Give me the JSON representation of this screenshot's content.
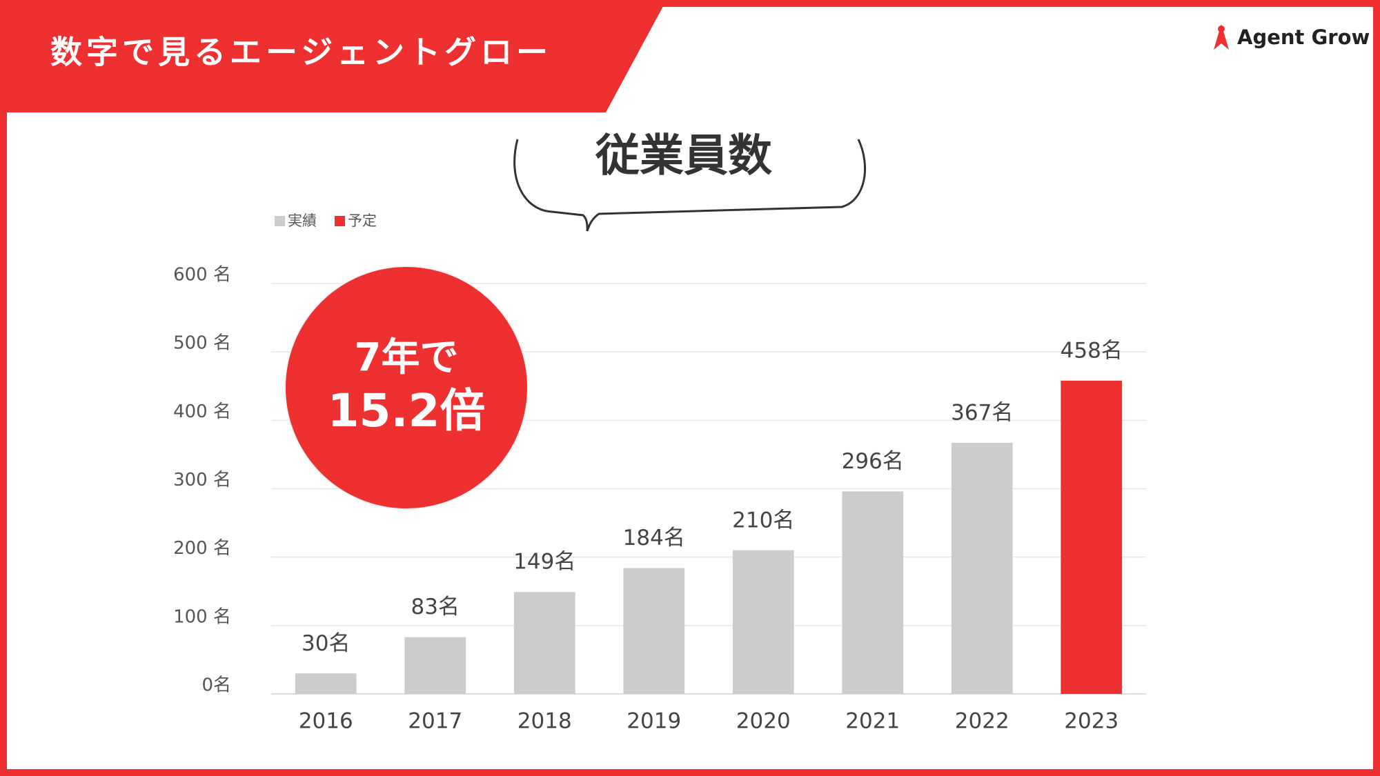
{
  "header": {
    "title": "数字で見るエージェントグロー",
    "logo": "Agent Grow"
  },
  "chart_data": {
    "type": "bar",
    "title": "従業員数",
    "annotation": [
      "7年で",
      "15.2倍"
    ],
    "categories": [
      "2016",
      "2017",
      "2018",
      "2019",
      "2020",
      "2021",
      "2022",
      "2023"
    ],
    "series": [
      {
        "name": "実績",
        "color": "#cccccc",
        "values": [
          30,
          83,
          149,
          184,
          210,
          296,
          367,
          null
        ],
        "value_labels": [
          "30名",
          "83名",
          "149名",
          "184名",
          "210名",
          "296名",
          "367名",
          null
        ]
      },
      {
        "name": "予定",
        "color": "#ee3030",
        "values": [
          null,
          null,
          null,
          null,
          null,
          null,
          null,
          458
        ],
        "value_labels": [
          null,
          null,
          null,
          null,
          null,
          null,
          null,
          "458名"
        ]
      }
    ],
    "ylim": [
      0,
      600
    ],
    "yticks": [
      {
        "value": 0,
        "label": "0名"
      },
      {
        "value": 100,
        "label": "100 名"
      },
      {
        "value": 200,
        "label": "200 名"
      },
      {
        "value": 300,
        "label": "300 名"
      },
      {
        "value": 400,
        "label": "400 名"
      },
      {
        "value": 500,
        "label": "500 名"
      },
      {
        "value": 600,
        "label": "600 名"
      }
    ],
    "grid": true,
    "legend": "top-left"
  }
}
